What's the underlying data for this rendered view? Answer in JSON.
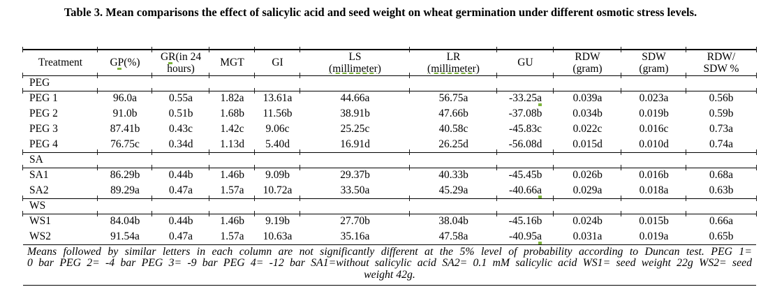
{
  "caption": "Table 3. Mean comparisons the effect of salicylic acid and seed weight on wheat germination under different osmotic stress levels.",
  "table": {
    "columns": [
      {
        "key": "treatment",
        "l1": "Treatment"
      },
      {
        "key": "gp",
        "l1": "GP(%)"
      },
      {
        "key": "gr",
        "l1": "GR(in 24",
        "l2": "hours)"
      },
      {
        "key": "mgt",
        "l1": "MGT"
      },
      {
        "key": "gi",
        "l1": "GI"
      },
      {
        "key": "ls",
        "l1": "LS",
        "l2": "(millimeter)"
      },
      {
        "key": "lr",
        "l1": "LR",
        "l2": "(millimeter)"
      },
      {
        "key": "gu",
        "l1": "GU"
      },
      {
        "key": "rdw",
        "l1": "RDW",
        "l2": "(gram)"
      },
      {
        "key": "sdw",
        "l1": "SDW",
        "l2": "(gram)"
      },
      {
        "key": "rdw_sdw",
        "l1": "RDW/",
        "l2": "SDW %"
      }
    ],
    "sections": [
      {
        "label": "PEG",
        "rows": [
          {
            "treatment": "PEG 1",
            "values": [
              "96.0a",
              "0.55a",
              "1.82a",
              "13.61a",
              "44.66a",
              "56.75a",
              "-33.25a",
              "0.039a",
              "0.023a",
              "0.56b"
            ]
          },
          {
            "treatment": "PEG 2",
            "values": [
              "91.0b",
              "0.51b",
              "1.68b",
              "11.56b",
              "38.91b",
              "47.66b",
              "-37.08b",
              "0.034b",
              "0.019b",
              "0.59b"
            ]
          },
          {
            "treatment": "PEG 3",
            "values": [
              "87.41b",
              "0.43c",
              "1.42c",
              "9.06c",
              "25.25c",
              "40.58c",
              "-45.83c",
              "0.022c",
              "0.016c",
              "0.73a"
            ]
          },
          {
            "treatment": "PEG 4",
            "values": [
              "76.75c",
              "0.34d",
              "1.13d",
              "5.40d",
              "16.91d",
              "26.25d",
              "-56.08d",
              "0.015d",
              "0.010d",
              "0.74a"
            ]
          }
        ]
      },
      {
        "label": "SA",
        "rows": [
          {
            "treatment": "SA1",
            "values": [
              "86.29b",
              "0.44b",
              "1.46b",
              "9.09b",
              "29.37b",
              "40.33b",
              "-45.45b",
              "0.026b",
              "0.016b",
              "0.68a"
            ]
          },
          {
            "treatment": "SA2",
            "values": [
              "89.29a",
              "0.47a",
              "1.57a",
              "10.72a",
              "33.50a",
              "45.29a",
              "-40.66a",
              "0.029a",
              "0.018a",
              "0.63b"
            ]
          }
        ]
      },
      {
        "label": "WS",
        "rows": [
          {
            "treatment": "WS1",
            "values": [
              "84.04b",
              "0.44b",
              "1.46b",
              "9.19b",
              "27.70b",
              "38.04b",
              "-45.16b",
              "0.024b",
              "0.015b",
              "0.66a"
            ]
          },
          {
            "treatment": "WS2",
            "values": [
              "91.54a",
              "0.47a",
              "1.57a",
              "10.63a",
              "35.16a",
              "47.58a",
              "-40.95a",
              "0.031a",
              "0.019a",
              "0.65b"
            ]
          }
        ]
      }
    ],
    "spellcheck": {
      "mark_color": "#7eb43c",
      "header_square_cols": [
        "gp",
        "gr"
      ],
      "header_squiggle_cols": [
        "ls",
        "lr"
      ],
      "value_mark_cells": [
        "PEG 1",
        "SA2",
        "WS2"
      ]
    },
    "footnote_lines": [
      "Means followed by similar letters in each column are not significantly different at the 5% level of probability according to Duncan test.  PEG 1=",
      "0 bar PEG 2= -4 bar PEG 3= -9 bar PEG 4= -12 bar SA1=without salicylic acid SA2= 0.1 mM salicylic acid WS1= seed weight 22g WS2= seed",
      "weight 42g."
    ]
  }
}
